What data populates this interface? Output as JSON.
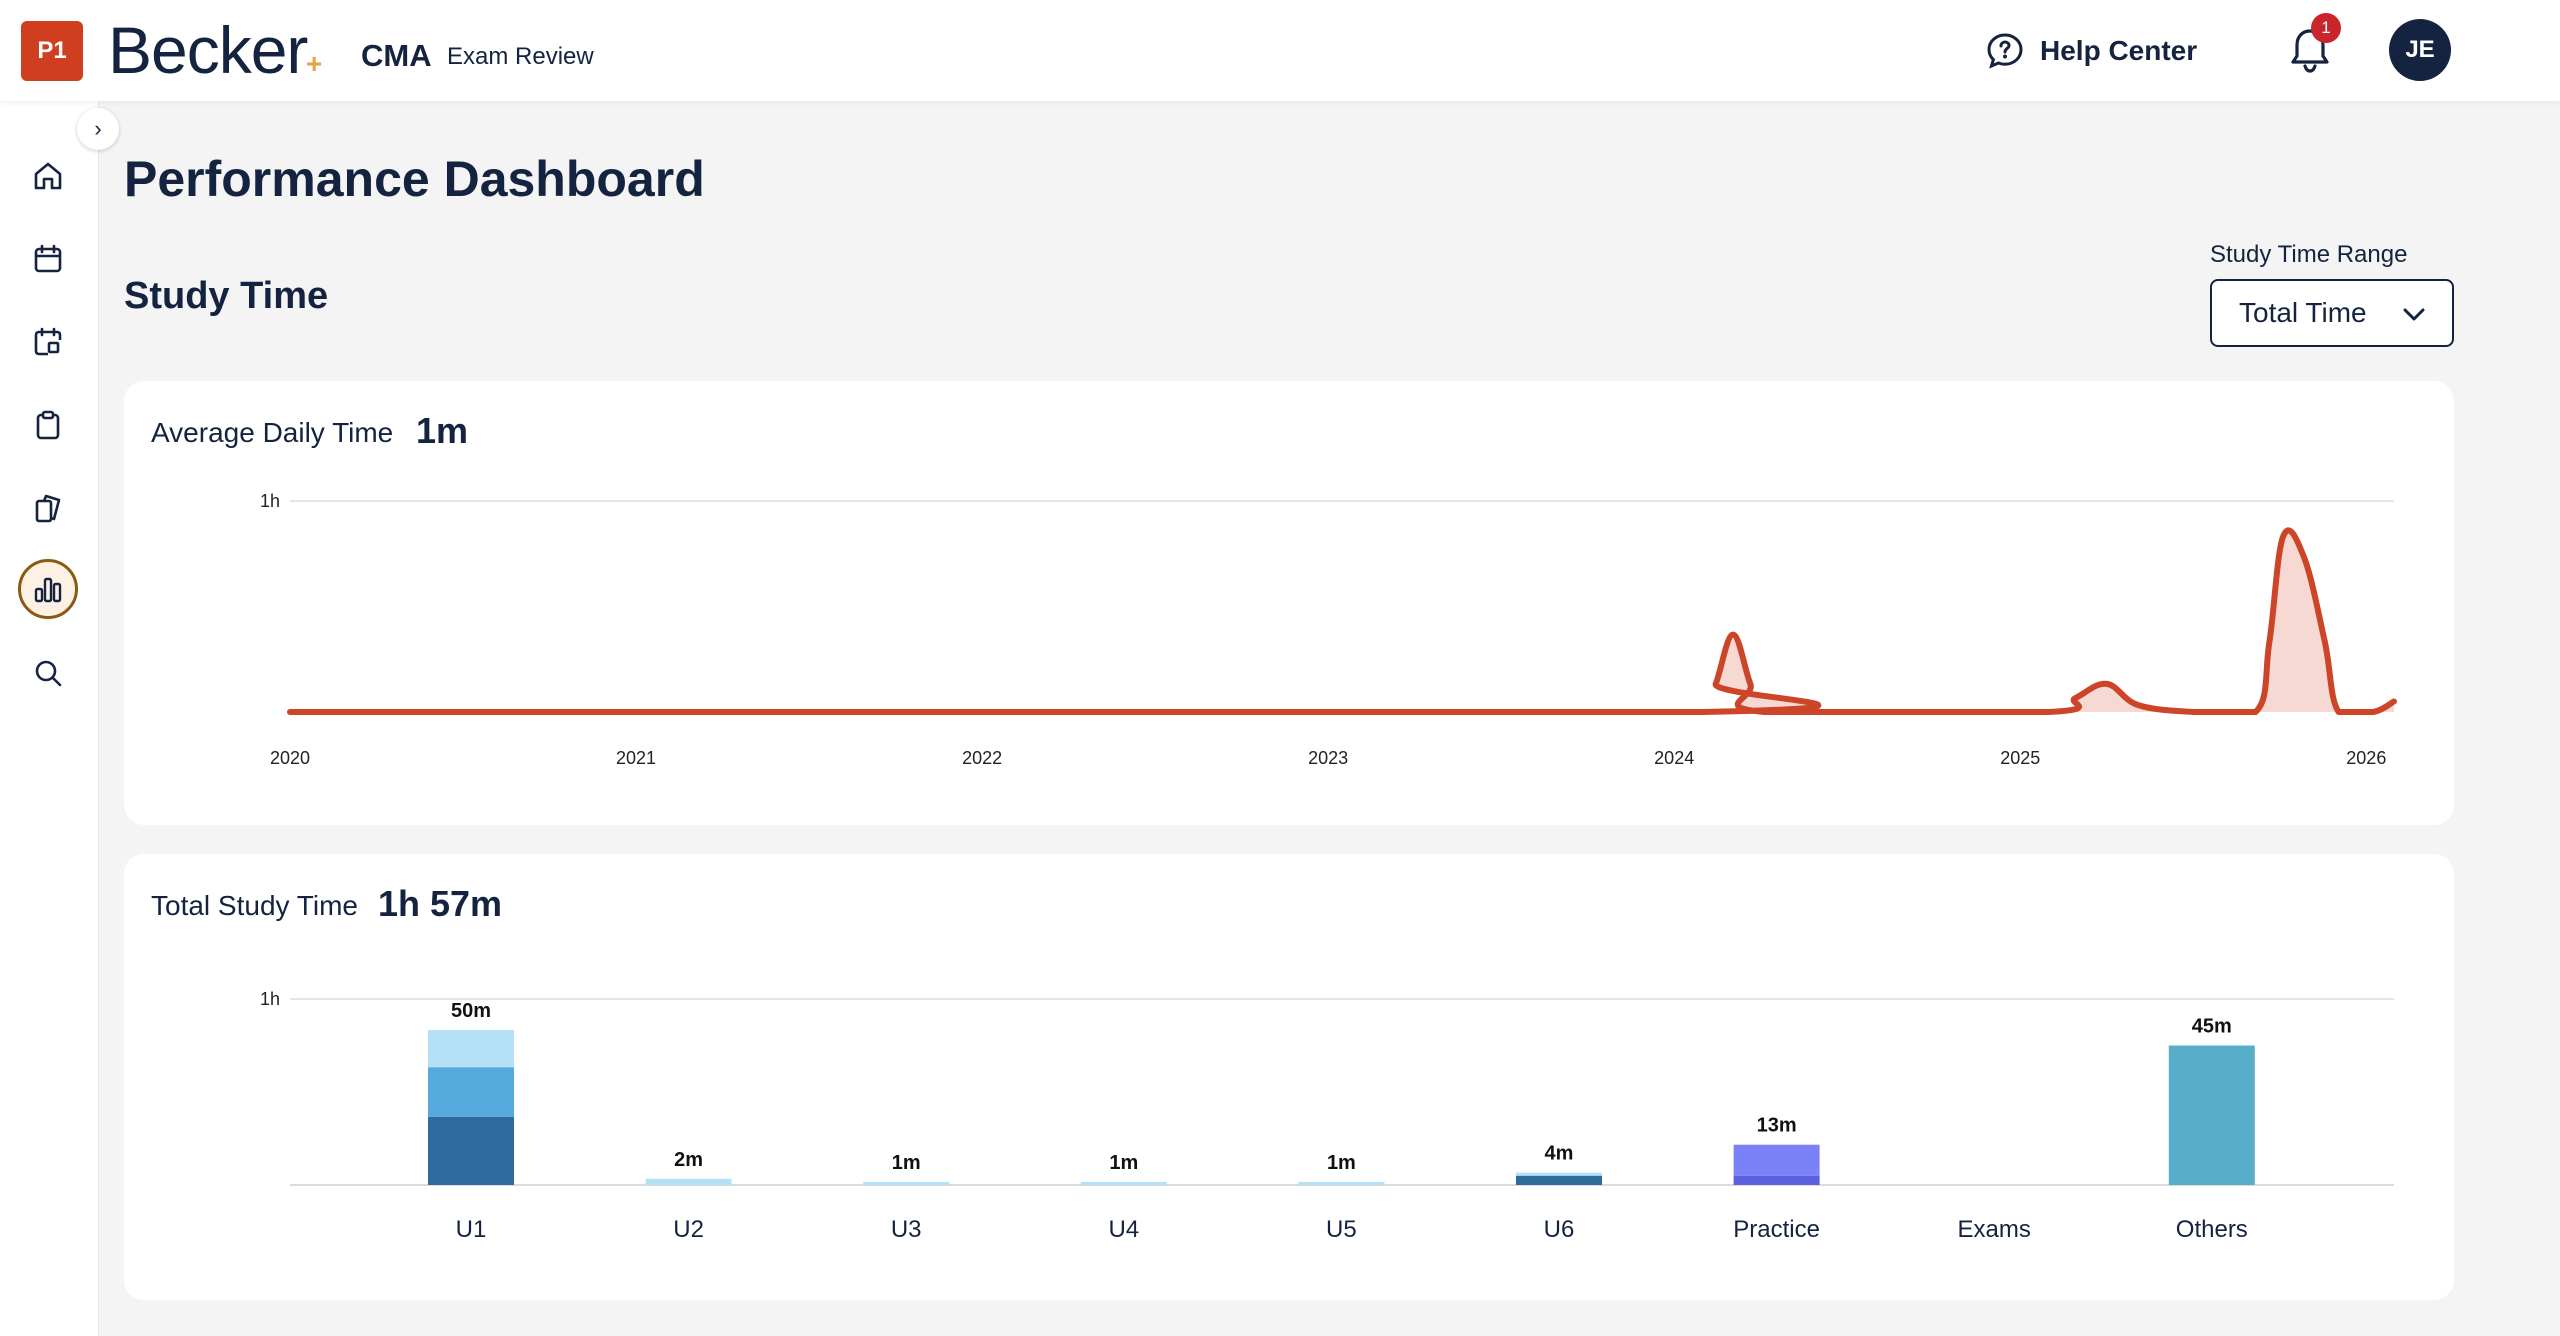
{
  "header": {
    "badge": "P1",
    "brand": "Becker",
    "brand_plus": "+",
    "product": "CMA",
    "product_sub": "Exam Review",
    "help_label": "Help Center",
    "notification_count": "1",
    "avatar_initials": "JE"
  },
  "sidebar": {
    "collapse_glyph": "›",
    "items": [
      {
        "icon": "home-icon"
      },
      {
        "icon": "calendar-icon"
      },
      {
        "icon": "schedule-icon"
      },
      {
        "icon": "clipboard-icon"
      },
      {
        "icon": "flashcards-icon"
      },
      {
        "icon": "bar-chart-icon",
        "active": true
      },
      {
        "icon": "search-icon"
      }
    ]
  },
  "main": {
    "page_title": "Performance Dashboard",
    "section_title": "Study Time",
    "range": {
      "label": "Study Time Range",
      "selected": "Total Time"
    }
  },
  "colors": {
    "navy": "#14233f",
    "line": "#cc4528",
    "area": "#f6d9d3",
    "accent_orange": "#e8a04a",
    "active_border": "#8a5a12"
  },
  "chart_data": [
    {
      "type": "area",
      "title": "Average Daily Time",
      "value_label": "1m",
      "x_tick_labels": [
        "2020",
        "2021",
        "2022",
        "2023",
        "2024",
        "2025",
        "2026"
      ],
      "y_tick_label": "1h",
      "ylim_minutes": [
        0,
        60
      ],
      "x_range": [
        2020.0,
        2026.08
      ],
      "points": [
        [
          2020.0,
          0
        ],
        [
          2024.08,
          0
        ],
        [
          2024.12,
          8
        ],
        [
          2024.17,
          22
        ],
        [
          2024.22,
          8
        ],
        [
          2024.26,
          0
        ],
        [
          2025.08,
          0
        ],
        [
          2025.16,
          4
        ],
        [
          2025.25,
          8
        ],
        [
          2025.34,
          2
        ],
        [
          2025.5,
          0
        ],
        [
          2025.68,
          0
        ],
        [
          2025.72,
          20
        ],
        [
          2025.76,
          50
        ],
        [
          2025.82,
          44
        ],
        [
          2025.88,
          20
        ],
        [
          2025.92,
          0
        ],
        [
          2026.02,
          0
        ],
        [
          2026.08,
          3
        ]
      ],
      "grid": true
    },
    {
      "type": "bar",
      "title": "Total Study Time",
      "value_label": "1h 57m",
      "y_tick_label": "1h",
      "ylim_minutes": [
        0,
        60
      ],
      "categories": [
        "U1",
        "U2",
        "U3",
        "U4",
        "U5",
        "U6",
        "Practice",
        "Exams",
        "Others"
      ],
      "data_labels": [
        "50m",
        "2m",
        "1m",
        "1m",
        "1m",
        "4m",
        "13m",
        "",
        "45m"
      ],
      "stacks": [
        [
          {
            "value": 22,
            "color": "#2e6b9c"
          },
          {
            "value": 16,
            "color": "#56a9dc"
          },
          {
            "value": 12,
            "color": "#b5e1f7"
          }
        ],
        [
          {
            "value": 2,
            "color": "#b5e1f7"
          }
        ],
        [
          {
            "value": 1,
            "color": "#b5e1f7"
          }
        ],
        [
          {
            "value": 1,
            "color": "#b5e1f7"
          }
        ],
        [
          {
            "value": 1,
            "color": "#b5e1f7"
          }
        ],
        [
          {
            "value": 3,
            "color": "#2e6b9c"
          },
          {
            "value": 1,
            "color": "#b5e1f7"
          }
        ],
        [
          {
            "value": 3,
            "color": "#5b5fe0"
          },
          {
            "value": 10,
            "color": "#7a82f7"
          }
        ],
        [],
        [
          {
            "value": 45,
            "color": "#58adc8"
          }
        ]
      ],
      "grid": true
    }
  ]
}
